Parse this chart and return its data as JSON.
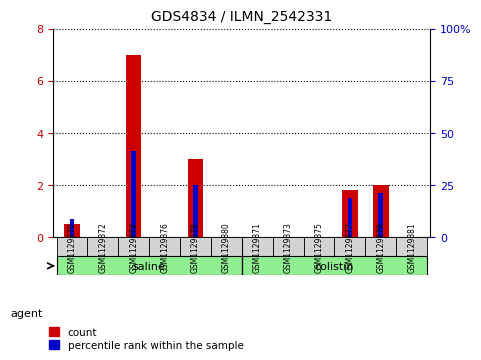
{
  "title": "GDS4834 / ILMN_2542331",
  "samples": [
    "GSM1129870",
    "GSM1129872",
    "GSM1129874",
    "GSM1129876",
    "GSM1129878",
    "GSM1129880",
    "GSM1129871",
    "GSM1129873",
    "GSM1129875",
    "GSM1129877",
    "GSM1129879",
    "GSM1129881"
  ],
  "count_values": [
    0.5,
    0,
    7,
    0,
    3,
    0,
    0,
    0,
    0,
    1.8,
    2.0,
    0
  ],
  "percentile_values": [
    8.75,
    0,
    41.25,
    0,
    25.0,
    0,
    0,
    0,
    0,
    18.75,
    21.25,
    0
  ],
  "groups": [
    {
      "label": "saline",
      "start": 0,
      "end": 5,
      "color": "#90EE90"
    },
    {
      "label": "colistin",
      "start": 6,
      "end": 11,
      "color": "#90EE90"
    }
  ],
  "group_row_label": "agent",
  "left_ylim": [
    0,
    8
  ],
  "left_yticks": [
    0,
    2,
    4,
    6,
    8
  ],
  "right_ylim": [
    0,
    100
  ],
  "right_yticks": [
    0,
    25,
    50,
    75,
    100
  ],
  "right_yticklabels": [
    "0",
    "25",
    "50",
    "75",
    "100%"
  ],
  "bar_color": "#CC0000",
  "percentile_color": "#0000CC",
  "bar_width": 0.5,
  "left_tick_color": "#CC0000",
  "right_tick_color": "#0000CC",
  "grid_color": "#000000",
  "legend_items": [
    {
      "label": "count",
      "color": "#CC0000"
    },
    {
      "label": "percentile rank within the sample",
      "color": "#0000CC"
    }
  ]
}
